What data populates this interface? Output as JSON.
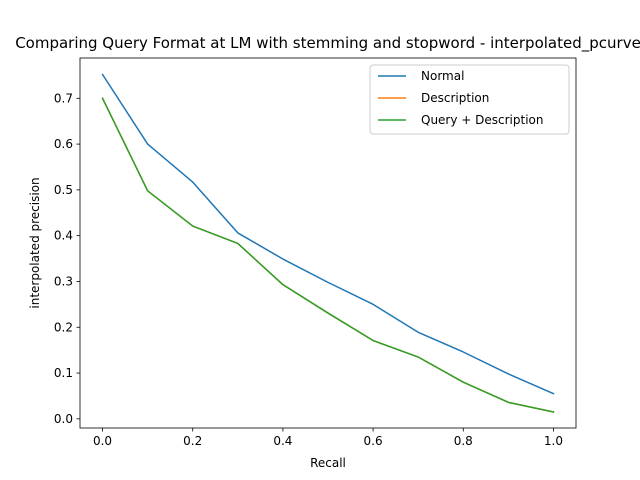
{
  "chart_data": {
    "type": "line",
    "title": "Comparing Query Format at LM with stemming and stopword - interpolated_pcurve",
    "xlabel": "Recall",
    "ylabel": "interpolated precision",
    "xlim": [
      -0.05,
      1.05
    ],
    "ylim": [
      -0.02,
      0.788
    ],
    "xticks": [
      "0.0",
      "0.2",
      "0.4",
      "0.6",
      "0.8",
      "1.0"
    ],
    "yticks": [
      "0.0",
      "0.1",
      "0.2",
      "0.3",
      "0.4",
      "0.5",
      "0.6",
      "0.7"
    ],
    "grid": false,
    "legend_position": "top-right",
    "x": [
      0.0,
      0.1,
      0.2,
      0.3,
      0.4,
      0.5,
      0.6,
      0.7,
      0.8,
      0.9,
      1.0
    ],
    "series": [
      {
        "name": "Normal",
        "color": "#1f77b4",
        "values": [
          0.752,
          0.6,
          0.517,
          0.406,
          0.349,
          0.298,
          0.25,
          0.189,
          0.146,
          0.098,
          0.055
        ]
      },
      {
        "name": "Description",
        "color": "#ff7f0e",
        "values": [
          0.7,
          0.498,
          0.421,
          0.383,
          0.293,
          0.231,
          0.171,
          0.135,
          0.08,
          0.036,
          0.015
        ]
      },
      {
        "name": "Query + Description",
        "color": "#2ca02c",
        "values": [
          0.7,
          0.498,
          0.421,
          0.383,
          0.293,
          0.231,
          0.171,
          0.135,
          0.08,
          0.036,
          0.015
        ]
      }
    ]
  }
}
